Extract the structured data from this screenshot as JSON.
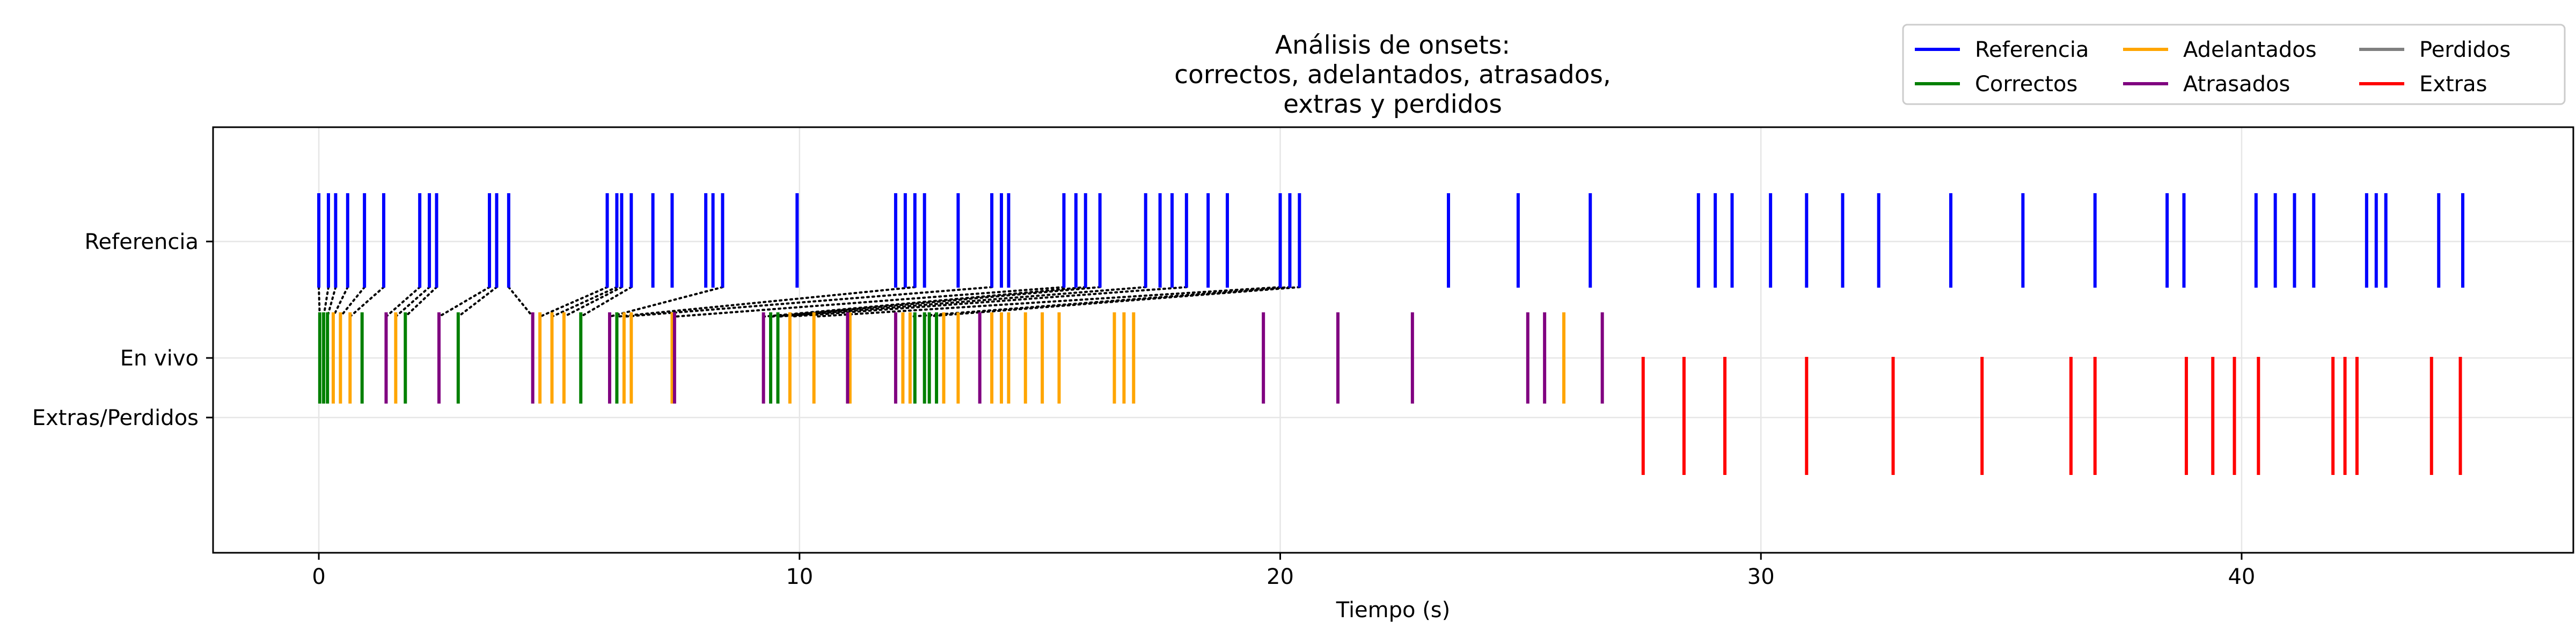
{
  "chart_data": {
    "type": "event",
    "title": "Análisis de onsets:\ncorrectos, adelantados, atrasados,\nextras y perdidos",
    "xlabel": "Tiempo (s)",
    "ylabel": "",
    "xlim": [
      -2.2,
      46.9
    ],
    "xticks": [
      0,
      10,
      20,
      30,
      40
    ],
    "row_labels": [
      "Referencia",
      "En vivo",
      "Extras/Perdidos"
    ],
    "grid": true,
    "legend_position": "top-right",
    "legend": [
      {
        "name": "Referencia",
        "color": "#0000ff"
      },
      {
        "name": "Correctos",
        "color": "#008000"
      },
      {
        "name": "Adelantados",
        "color": "#ffa500"
      },
      {
        "name": "Atrasados",
        "color": "#800080"
      },
      {
        "name": "Perdidos",
        "color": "#808080"
      },
      {
        "name": "Extras",
        "color": "#ff0000"
      }
    ],
    "series": [
      {
        "name": "Referencia",
        "row": "Referencia",
        "x": [
          0.0,
          0.2,
          0.35,
          0.6,
          0.95,
          1.35,
          2.1,
          2.3,
          2.45,
          3.55,
          3.7,
          3.95,
          6.0,
          6.2,
          6.3,
          6.5,
          6.95,
          7.35,
          8.05,
          8.2,
          8.4,
          9.95,
          12.0,
          12.2,
          12.4,
          12.6,
          13.3,
          14.0,
          14.2,
          14.35,
          15.5,
          15.75,
          15.95,
          16.25,
          17.2,
          17.5,
          17.75,
          18.05,
          18.5,
          18.9,
          20.0,
          20.2,
          20.4,
          23.5,
          24.95,
          26.45,
          28.7,
          29.05,
          29.4,
          30.2,
          30.95,
          31.7,
          32.45,
          33.95,
          35.45,
          36.95,
          38.45,
          38.8,
          40.3,
          40.7,
          41.1,
          41.5,
          42.6,
          42.8,
          43.0,
          44.1,
          44.6
        ]
      },
      {
        "name": "Correctos",
        "row": "En vivo",
        "x": [
          0.02,
          0.1,
          0.18,
          0.9,
          1.8,
          2.9,
          5.45,
          6.2,
          9.4,
          9.55,
          12.4,
          12.6,
          12.7,
          12.85
        ]
      },
      {
        "name": "Adelantados",
        "row": "En vivo",
        "x": [
          0.3,
          0.45,
          0.65,
          1.6,
          4.6,
          4.85,
          5.1,
          6.35,
          6.5,
          7.35,
          9.8,
          10.3,
          11.05,
          12.15,
          12.3,
          13.0,
          13.3,
          14.0,
          14.2,
          14.35,
          14.7,
          15.05,
          15.4,
          16.55,
          16.75,
          16.95,
          25.9
        ]
      },
      {
        "name": "Atrasados",
        "row": "En vivo",
        "x": [
          1.4,
          2.5,
          4.45,
          6.05,
          7.4,
          9.25,
          11.0,
          12.0,
          13.75,
          19.65,
          21.2,
          22.75,
          25.15,
          25.5,
          26.7
        ]
      },
      {
        "name": "Extras",
        "row": "Extras/Perdidos",
        "x": [
          27.55,
          28.4,
          29.25,
          30.95,
          32.75,
          34.6,
          36.45,
          36.95,
          38.85,
          39.4,
          39.85,
          40.35,
          41.9,
          42.15,
          42.4,
          43.95,
          44.55
        ]
      },
      {
        "name": "Perdidos",
        "row": "Extras/Perdidos",
        "x": []
      }
    ],
    "matches": [
      [
        0.0,
        0.02
      ],
      [
        0.2,
        0.1
      ],
      [
        0.35,
        0.18
      ],
      [
        0.6,
        0.3
      ],
      [
        0.95,
        0.45
      ],
      [
        1.35,
        0.65
      ],
      [
        2.1,
        1.4
      ],
      [
        2.3,
        1.6
      ],
      [
        2.45,
        1.8
      ],
      [
        3.55,
        2.5
      ],
      [
        3.7,
        2.9
      ],
      [
        3.95,
        4.45
      ],
      [
        6.0,
        4.6
      ],
      [
        6.2,
        4.85
      ],
      [
        6.3,
        5.1
      ],
      [
        6.5,
        5.45
      ],
      [
        8.4,
        6.05
      ],
      [
        12.4,
        6.2
      ],
      [
        14.0,
        6.35
      ],
      [
        15.5,
        7.4
      ],
      [
        15.95,
        9.25
      ],
      [
        16.25,
        9.4
      ],
      [
        17.2,
        9.55
      ],
      [
        18.05,
        9.8
      ],
      [
        20.0,
        10.3
      ],
      [
        20.2,
        12.3
      ],
      [
        20.4,
        12.6
      ]
    ]
  }
}
